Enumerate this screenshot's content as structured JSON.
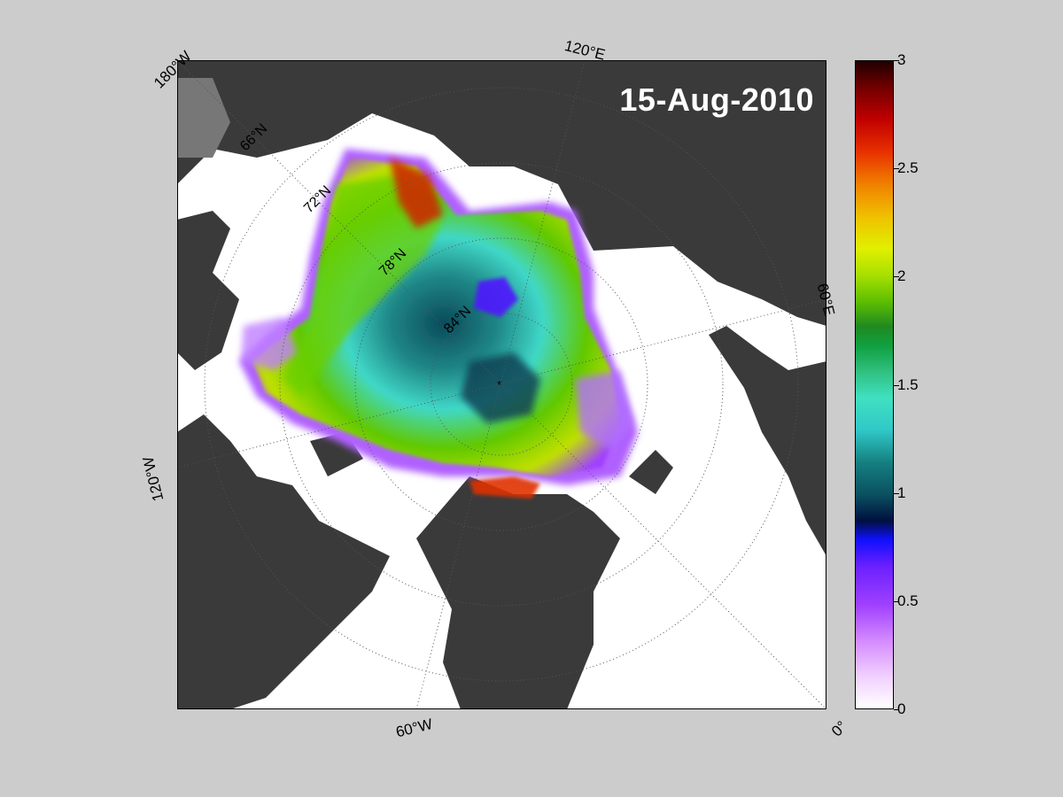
{
  "map": {
    "date": "15-Aug-2010",
    "longitude_labels": {
      "lon_180w": "180°W",
      "lon_120e": "120°E",
      "lon_60e": "60°E",
      "lon_120w": "120°W",
      "lon_60w": "60°W",
      "lon_0": "0°"
    },
    "latitude_labels": {
      "lat_66n": "66°N",
      "lat_72n": "72°N",
      "lat_78n": "78°N",
      "lat_84n": "84°N"
    }
  },
  "colorbar": {
    "min": 0,
    "max": 3,
    "tick_labels": [
      "0",
      "0.5",
      "1",
      "1.5",
      "2",
      "2.5",
      "3"
    ]
  },
  "colors": {
    "land": "#3a3a3a",
    "ocean_open": "#ffffff",
    "background": "#cccccc"
  }
}
